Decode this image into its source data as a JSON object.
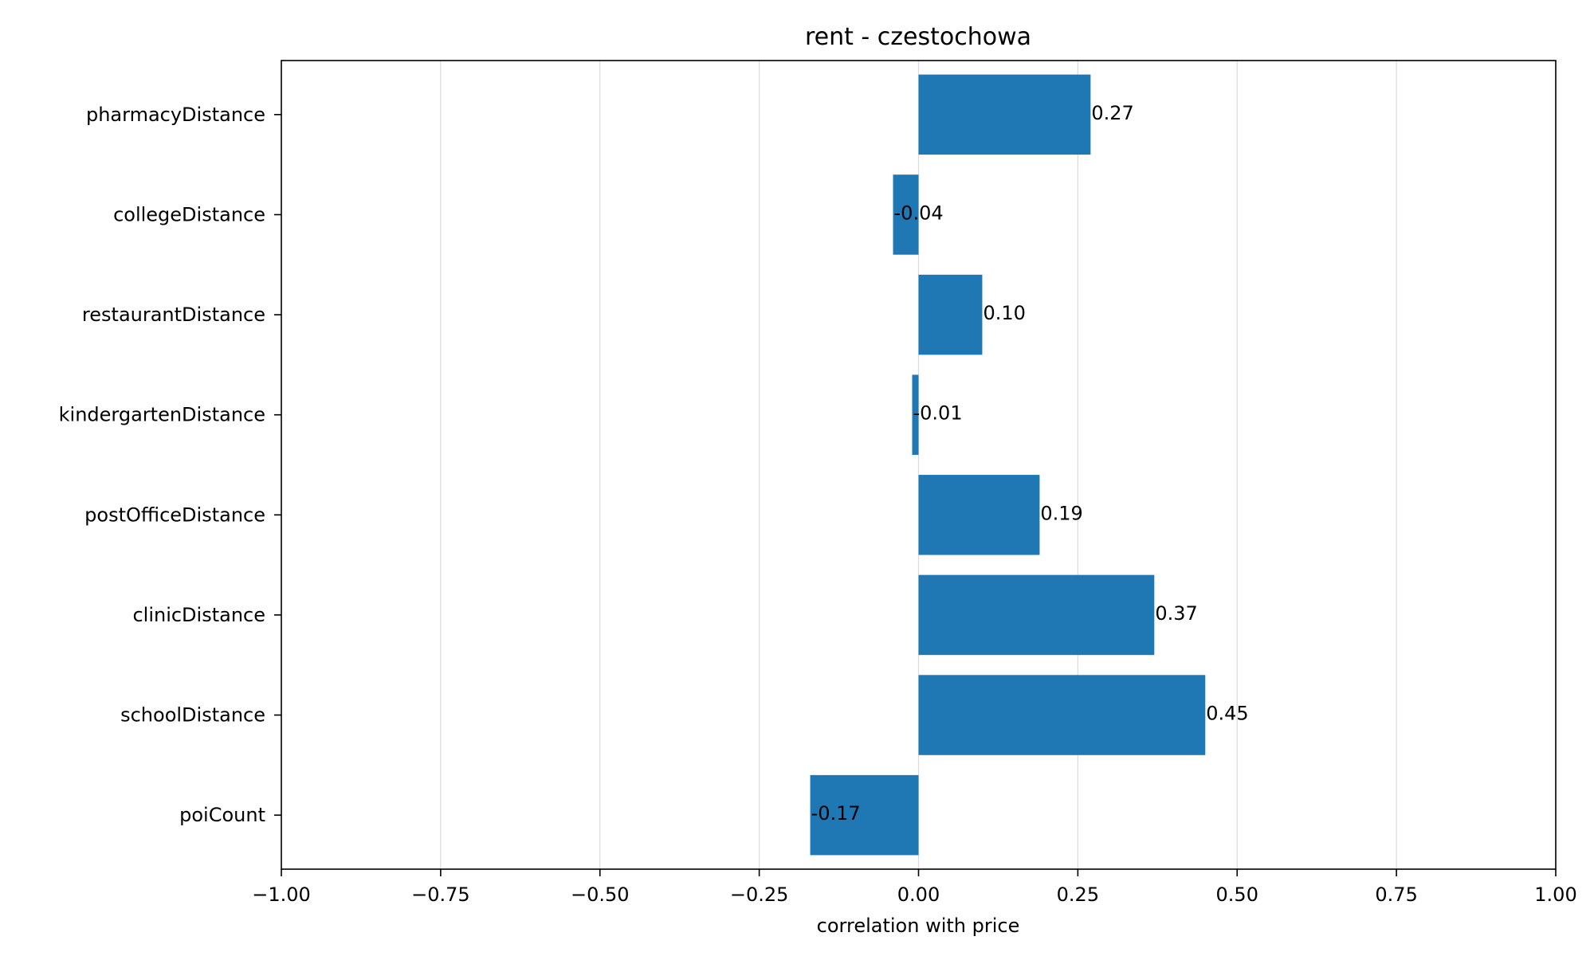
{
  "chart_data": {
    "type": "bar",
    "orientation": "horizontal",
    "title": "rent - czestochowa",
    "xlabel": "correlation with price",
    "ylabel": "",
    "xlim": [
      -1.0,
      1.0
    ],
    "x_ticks": [
      -1.0,
      -0.75,
      -0.5,
      -0.25,
      0.0,
      0.25,
      0.5,
      0.75,
      1.0
    ],
    "x_tick_labels": [
      "−1.00",
      "−0.75",
      "−0.50",
      "−0.25",
      "0.00",
      "0.25",
      "0.50",
      "0.75",
      "1.00"
    ],
    "grid": "vertical",
    "bar_color": "#1f77b4",
    "grid_color": "#dddddd",
    "categories": [
      "pharmacyDistance",
      "collegeDistance",
      "restaurantDistance",
      "kindergartenDistance",
      "postOfficeDistance",
      "clinicDistance",
      "schoolDistance",
      "poiCount"
    ],
    "values": [
      0.27,
      -0.04,
      0.1,
      -0.01,
      0.19,
      0.37,
      0.45,
      -0.17
    ],
    "data_labels": [
      "0.27",
      "-0.04",
      "0.10",
      "-0.01",
      "0.19",
      "0.37",
      "0.45",
      "-0.17"
    ]
  }
}
